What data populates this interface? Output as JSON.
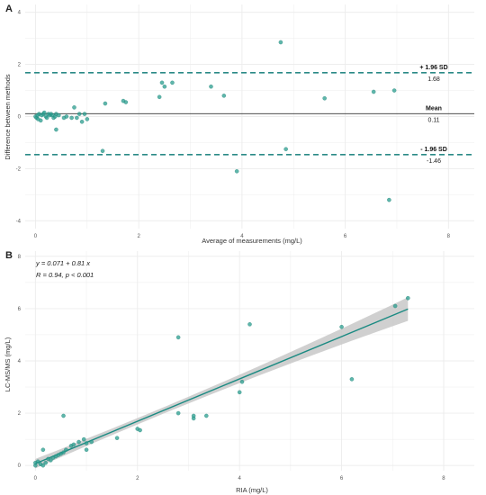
{
  "colors": {
    "point": "#2a9d8f",
    "point_stroke": "#1f7f73",
    "ref_line": "#2a8a86",
    "fit_line": "#1a8a82",
    "band": "#c8c8c8",
    "grid": "#ececec",
    "axis_text": "#555555"
  },
  "chart_data": [
    {
      "panel": "A",
      "type": "scatter",
      "xlabel": "Average of measurements (mg/L)",
      "ylabel": "Difference between methods",
      "xlim": [
        -0.2,
        8.5
      ],
      "ylim": [
        -4.3,
        4.3
      ],
      "x_ticks": [
        0,
        2,
        4,
        6,
        8
      ],
      "y_ticks": [
        -4,
        -2,
        0,
        2,
        4
      ],
      "grid": true,
      "reference_lines": [
        {
          "id": "upper",
          "label": "+ 1.96 SD",
          "value_label": "1.68",
          "y": 1.68,
          "style": "dashed"
        },
        {
          "id": "mean",
          "label": "Mean",
          "value_label": "0.11",
          "y": 0.11,
          "style": "solid"
        },
        {
          "id": "lower",
          "label": "- 1.96 SD",
          "value_label": "-1.46",
          "y": -1.46,
          "style": "dashed"
        }
      ],
      "points": [
        [
          0.0,
          0.0
        ],
        [
          0.02,
          -0.05
        ],
        [
          0.04,
          0.05
        ],
        [
          0.05,
          -0.1
        ],
        [
          0.07,
          0.1
        ],
        [
          0.1,
          -0.15
        ],
        [
          0.12,
          0.05
        ],
        [
          0.15,
          0.1
        ],
        [
          0.17,
          0.15
        ],
        [
          0.2,
          0.0
        ],
        [
          0.22,
          -0.05
        ],
        [
          0.25,
          0.1
        ],
        [
          0.28,
          0.05
        ],
        [
          0.3,
          0.1
        ],
        [
          0.33,
          0.05
        ],
        [
          0.35,
          -0.05
        ],
        [
          0.38,
          0.0
        ],
        [
          0.4,
          0.1
        ],
        [
          0.45,
          0.05
        ],
        [
          0.4,
          -0.5
        ],
        [
          0.55,
          -0.05
        ],
        [
          0.6,
          0.0
        ],
        [
          0.7,
          -0.05
        ],
        [
          0.75,
          0.35
        ],
        [
          0.8,
          -0.05
        ],
        [
          0.85,
          0.1
        ],
        [
          0.9,
          -0.2
        ],
        [
          0.95,
          0.1
        ],
        [
          1.0,
          -0.1
        ],
        [
          1.3,
          -1.32
        ],
        [
          1.35,
          0.5
        ],
        [
          1.7,
          0.6
        ],
        [
          1.75,
          0.55
        ],
        [
          2.4,
          0.75
        ],
        [
          2.45,
          1.3
        ],
        [
          2.5,
          1.15
        ],
        [
          2.65,
          1.3
        ],
        [
          3.4,
          1.15
        ],
        [
          3.65,
          0.8
        ],
        [
          3.9,
          -2.1
        ],
        [
          4.75,
          2.85
        ],
        [
          4.85,
          -1.25
        ],
        [
          5.6,
          0.7
        ],
        [
          6.55,
          0.95
        ],
        [
          6.85,
          -3.2
        ],
        [
          6.95,
          1.0
        ]
      ]
    },
    {
      "panel": "B",
      "type": "scatter",
      "xlabel": "RIA (mg/L)",
      "ylabel": "LC-MS/MS (mg/L)",
      "xlim": [
        -0.2,
        8.6
      ],
      "ylim": [
        -0.2,
        8.2
      ],
      "x_ticks": [
        0,
        2,
        4,
        6,
        8
      ],
      "y_ticks": [
        0,
        2,
        4,
        6,
        8
      ],
      "grid": true,
      "equation": "y = 0.071 + 0.81 x",
      "stats": "R = 0.94, p < 0.001",
      "fit": {
        "intercept": 0.071,
        "slope": 0.81,
        "x_range": [
          0,
          7.3
        ]
      },
      "points": [
        [
          0.0,
          0.0
        ],
        [
          0.0,
          0.1
        ],
        [
          0.05,
          0.15
        ],
        [
          0.1,
          0.05
        ],
        [
          0.15,
          0.0
        ],
        [
          0.2,
          0.1
        ],
        [
          0.15,
          0.6
        ],
        [
          0.25,
          0.25
        ],
        [
          0.3,
          0.2
        ],
        [
          0.35,
          0.3
        ],
        [
          0.4,
          0.35
        ],
        [
          0.45,
          0.4
        ],
        [
          0.5,
          0.45
        ],
        [
          0.55,
          0.5
        ],
        [
          0.6,
          0.6
        ],
        [
          0.7,
          0.75
        ],
        [
          0.75,
          0.8
        ],
        [
          0.85,
          0.9
        ],
        [
          0.95,
          1.0
        ],
        [
          1.0,
          0.85
        ],
        [
          1.0,
          0.6
        ],
        [
          0.55,
          1.9
        ],
        [
          1.1,
          0.9
        ],
        [
          1.6,
          1.05
        ],
        [
          2.0,
          1.4
        ],
        [
          2.05,
          1.35
        ],
        [
          2.8,
          2.0
        ],
        [
          3.1,
          1.8
        ],
        [
          3.1,
          1.9
        ],
        [
          3.35,
          1.9
        ],
        [
          2.8,
          4.9
        ],
        [
          4.0,
          2.8
        ],
        [
          4.05,
          3.2
        ],
        [
          4.2,
          5.4
        ],
        [
          6.0,
          5.3
        ],
        [
          6.2,
          3.3
        ],
        [
          7.05,
          6.1
        ],
        [
          7.3,
          6.4
        ]
      ]
    }
  ],
  "labels": {
    "panel_a": "A",
    "panel_b": "B"
  }
}
